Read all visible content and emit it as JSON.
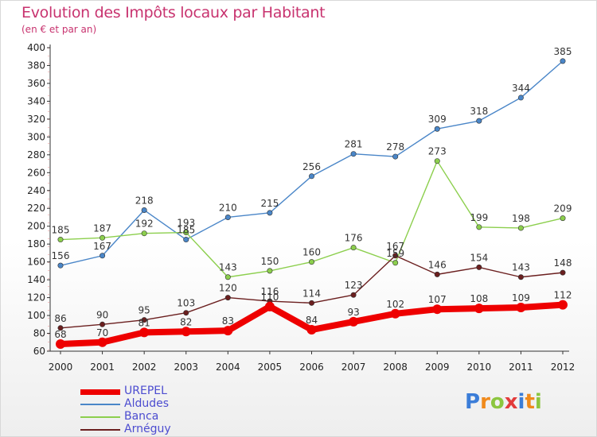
{
  "title": "Evolution des Impôts locaux par Habitant",
  "subtitle": "(en € et par an)",
  "logo": {
    "text": "Proxiti",
    "colors": [
      "#3b7dd8",
      "#f08a1c",
      "#8cc63f",
      "#e23b3b",
      "#3b7dd8",
      "#f08a1c",
      "#8cc63f"
    ]
  },
  "chart_data": {
    "type": "line",
    "title": "Evolution des Impôts locaux par Habitant",
    "subtitle": "(en € et par an)",
    "xlabel": "",
    "ylabel": "",
    "ylim": [
      60,
      400
    ],
    "yticks": [
      60,
      80,
      100,
      120,
      140,
      160,
      180,
      200,
      220,
      240,
      260,
      280,
      300,
      320,
      340,
      360,
      380,
      400
    ],
    "x": [
      "2000",
      "2001",
      "2002",
      "2003",
      "2004",
      "2005",
      "2006",
      "2007",
      "2008",
      "2009",
      "2010",
      "2011",
      "2012"
    ],
    "grid": false,
    "legend": "bottom-left",
    "series": [
      {
        "name": "Aldudes",
        "color": "#4a86c8",
        "values": [
          156,
          167,
          218,
          185,
          210,
          215,
          256,
          281,
          278,
          309,
          318,
          344,
          385
        ]
      },
      {
        "name": "Banca",
        "color": "#8ccf4d",
        "values": [
          185,
          187,
          192,
          193,
          143,
          150,
          160,
          176,
          159,
          273,
          199,
          198,
          209
        ]
      },
      {
        "name": "Arnéguy",
        "color": "#6b1f1f",
        "values": [
          86,
          90,
          95,
          103,
          120,
          116,
          114,
          123,
          167,
          146,
          154,
          143,
          148
        ]
      },
      {
        "name": "UREPEL",
        "color": "#ee0000",
        "values": [
          68,
          70,
          81,
          82,
          83,
          110,
          84,
          93,
          102,
          107,
          108,
          109,
          112
        ]
      }
    ]
  }
}
